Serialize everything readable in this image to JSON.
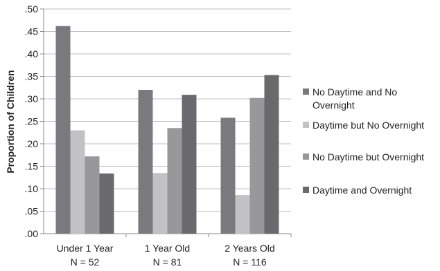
{
  "chart_data": {
    "type": "bar",
    "title": "",
    "xlabel": "",
    "ylabel": "Proportion of Children",
    "ylim": [
      0,
      0.5
    ],
    "yticks": [
      ".00",
      ".05",
      ".10",
      ".15",
      ".20",
      ".25",
      ".30",
      ".35",
      ".40",
      ".45",
      ".50"
    ],
    "grid": true,
    "legend_position": "right",
    "categories": [
      {
        "line1": "Under 1 Year",
        "line2": "N = 52"
      },
      {
        "line1": "1 Year Old",
        "line2": "N = 81"
      },
      {
        "line1": "2 Years Old",
        "line2": "N = 116"
      }
    ],
    "series": [
      {
        "name": "No Daytime and No Overnight",
        "color": "#7a7a7e",
        "values": [
          0.462,
          0.32,
          0.258
        ]
      },
      {
        "name": "Daytime but No Overnight",
        "color": "#c2c2c4",
        "values": [
          0.23,
          0.135,
          0.086
        ]
      },
      {
        "name": "No Daytime but Overnight",
        "color": "#98989b",
        "values": [
          0.172,
          0.235,
          0.302
        ]
      },
      {
        "name": "Daytime and Overnight",
        "color": "#6a6a6e",
        "values": [
          0.134,
          0.309,
          0.353
        ]
      }
    ]
  }
}
